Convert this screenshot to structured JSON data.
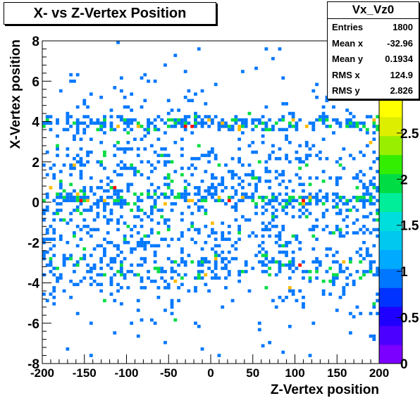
{
  "chart_data": {
    "type": "heatmap",
    "title": "X- vs Z-Vertex Position",
    "xlabel": "Z-Vertex position",
    "ylabel": "X-Vertex position",
    "xlim": [
      -200,
      200
    ],
    "ylim": [
      -8,
      8
    ],
    "x_ticks": [
      "-200",
      "-150",
      "-100",
      "-50",
      "0",
      "50",
      "100",
      "150",
      "200"
    ],
    "y_ticks": [
      "-8",
      "-6",
      "-4",
      "-2",
      "0",
      "2",
      "4",
      "6",
      "8"
    ],
    "z_ticks": [
      "0",
      "0.5",
      "1",
      "1.5",
      "2",
      "2.5",
      "3",
      "3.5"
    ],
    "zlim": [
      0,
      3.5
    ],
    "bins": {
      "nx": 100,
      "ny": 100
    },
    "stats": {
      "name": "Vx_Vz0",
      "entries_label": "Entries",
      "entries": "1800",
      "meanx_label": "Mean x",
      "meanx": "-32.96",
      "meany_label": "Mean y",
      "meany": "0.1934",
      "rmsx_label": "RMS x",
      "rmsx": "124.9",
      "rmsy_label": "RMS y",
      "rmsy": "2.826"
    },
    "palette": [
      "#7b00ff",
      "#4b00ff",
      "#1f00ff",
      "#0033ff",
      "#0077ff",
      "#00aaff",
      "#00c8ee",
      "#00dddd",
      "#00ee99",
      "#00dd44",
      "#33ee00",
      "#99ee00",
      "#ddee00",
      "#ffff00",
      "#ffbb00",
      "#ff5500",
      "#ff0000"
    ],
    "grid": false,
    "legend": "none"
  }
}
